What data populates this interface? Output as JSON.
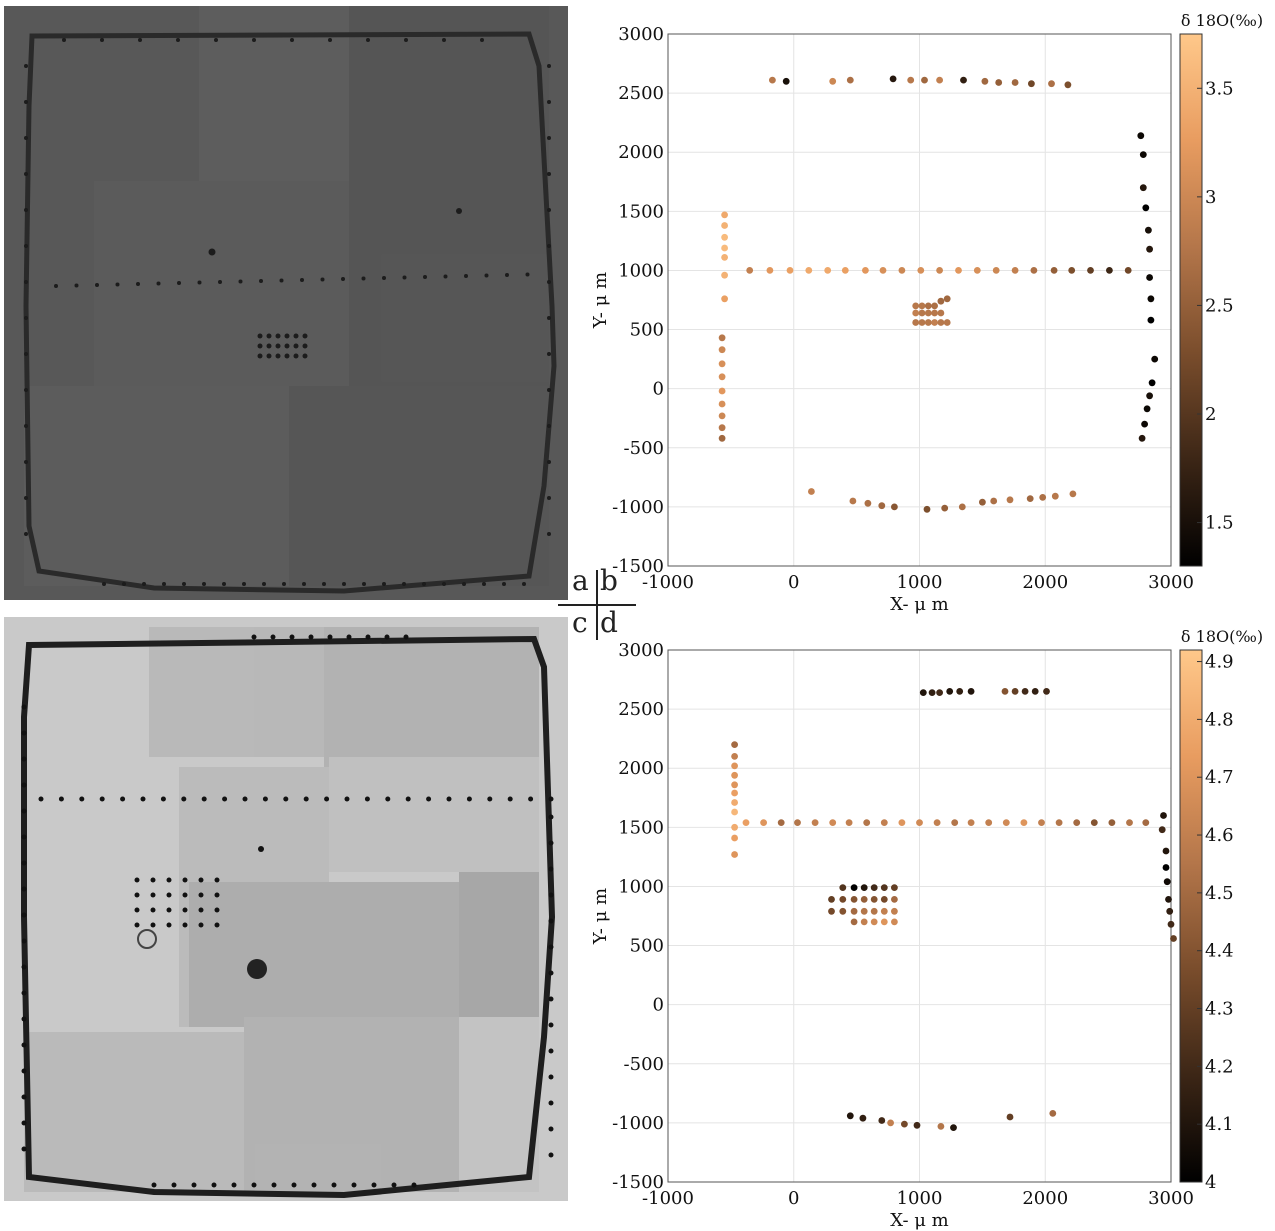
{
  "panel_labels": {
    "a": "a",
    "b": "b",
    "c": "c",
    "d": "d"
  },
  "photos": {
    "a": {
      "background": "#585858",
      "outline": "#2a2a2a",
      "pit": "#1c1c1c"
    },
    "c": {
      "background": "#c9c9c9",
      "outline": "#1e1e1e",
      "pit": "#111111"
    }
  },
  "colormap": [
    "#000000",
    "#3c2616",
    "#7a4d2c",
    "#b4764a",
    "#e89c60",
    "#ffc88a"
  ],
  "chart_data": [
    {
      "type": "scatter",
      "panel": "b",
      "xlabel": "X- μ m",
      "ylabel": "Y- μ m",
      "colorbar_label": "δ 18O(‰)",
      "xlim": [
        -1000,
        3000
      ],
      "ylim": [
        -1500,
        3000
      ],
      "xticks": [
        -1000,
        0,
        1000,
        2000,
        3000
      ],
      "yticks": [
        -1500,
        -1000,
        -500,
        0,
        500,
        1000,
        1500,
        2000,
        2500,
        3000
      ],
      "clim": [
        1.3,
        3.75
      ],
      "cticks": [
        1.5,
        2,
        2.5,
        3,
        3.5
      ],
      "grid": true,
      "points": [
        [
          -170,
          2610,
          2.8
        ],
        [
          -60,
          2600,
          1.5
        ],
        [
          310,
          2600,
          3.0
        ],
        [
          450,
          2610,
          2.7
        ],
        [
          790,
          2620,
          1.6
        ],
        [
          930,
          2610,
          2.8
        ],
        [
          1040,
          2610,
          2.6
        ],
        [
          1160,
          2610,
          2.9
        ],
        [
          1350,
          2610,
          1.7
        ],
        [
          1520,
          2600,
          2.6
        ],
        [
          1630,
          2590,
          2.5
        ],
        [
          1760,
          2590,
          2.6
        ],
        [
          1890,
          2580,
          2.2
        ],
        [
          2050,
          2580,
          2.7
        ],
        [
          2180,
          2570,
          2.3
        ],
        [
          -550,
          1470,
          3.4
        ],
        [
          -550,
          1380,
          3.5
        ],
        [
          -550,
          1280,
          3.6
        ],
        [
          -550,
          1190,
          3.6
        ],
        [
          -550,
          1110,
          3.5
        ],
        [
          -550,
          960,
          3.5
        ],
        [
          -550,
          760,
          3.3
        ],
        [
          -350,
          1000,
          2.9
        ],
        [
          -190,
          1000,
          3.2
        ],
        [
          -30,
          1000,
          3.3
        ],
        [
          120,
          1000,
          3.4
        ],
        [
          270,
          1000,
          3.4
        ],
        [
          410,
          1000,
          3.3
        ],
        [
          570,
          1000,
          3.2
        ],
        [
          710,
          1000,
          3.1
        ],
        [
          860,
          1000,
          3.0
        ],
        [
          1010,
          1000,
          3.1
        ],
        [
          1160,
          1000,
          3.0
        ],
        [
          1310,
          1000,
          3.2
        ],
        [
          1460,
          1000,
          3.1
        ],
        [
          1610,
          1000,
          3.0
        ],
        [
          1760,
          1000,
          2.9
        ],
        [
          1910,
          1000,
          2.7
        ],
        [
          2070,
          1000,
          2.5
        ],
        [
          2210,
          1000,
          2.3
        ],
        [
          2360,
          1000,
          2.1
        ],
        [
          2510,
          1000,
          1.8
        ],
        [
          2660,
          1000,
          2.2
        ],
        [
          970,
          700,
          2.8
        ],
        [
          1020,
          700,
          2.8
        ],
        [
          1070,
          700,
          2.7
        ],
        [
          1120,
          700,
          2.7
        ],
        [
          1170,
          740,
          2.6
        ],
        [
          1220,
          760,
          2.6
        ],
        [
          970,
          640,
          2.9
        ],
        [
          1020,
          640,
          2.8
        ],
        [
          1070,
          640,
          2.8
        ],
        [
          1120,
          640,
          2.8
        ],
        [
          1170,
          640,
          2.8
        ],
        [
          970,
          560,
          2.8
        ],
        [
          1020,
          560,
          2.8
        ],
        [
          1070,
          560,
          2.8
        ],
        [
          1120,
          560,
          2.9
        ],
        [
          1170,
          560,
          2.8
        ],
        [
          1220,
          560,
          2.8
        ],
        [
          -570,
          430,
          2.8
        ],
        [
          -570,
          330,
          3.0
        ],
        [
          -570,
          210,
          3.1
        ],
        [
          -570,
          100,
          3.1
        ],
        [
          -570,
          -20,
          3.2
        ],
        [
          -570,
          -130,
          3.1
        ],
        [
          -570,
          -230,
          3.0
        ],
        [
          -570,
          -330,
          2.8
        ],
        [
          -570,
          -420,
          2.6
        ],
        [
          2760,
          2140,
          1.4
        ],
        [
          2780,
          1980,
          1.4
        ],
        [
          2780,
          1700,
          1.6
        ],
        [
          2800,
          1530,
          1.3
        ],
        [
          2820,
          1340,
          1.5
        ],
        [
          2830,
          1180,
          1.6
        ],
        [
          2830,
          940,
          1.4
        ],
        [
          2840,
          760,
          1.4
        ],
        [
          2840,
          580,
          1.3
        ],
        [
          2870,
          250,
          1.4
        ],
        [
          2850,
          50,
          1.3
        ],
        [
          2830,
          -60,
          1.5
        ],
        [
          2810,
          -170,
          1.4
        ],
        [
          2790,
          -300,
          1.4
        ],
        [
          2770,
          -420,
          1.6
        ],
        [
          140,
          -870,
          2.9
        ],
        [
          470,
          -950,
          2.8
        ],
        [
          590,
          -970,
          2.7
        ],
        [
          700,
          -990,
          2.6
        ],
        [
          800,
          -1000,
          2.4
        ],
        [
          1060,
          -1020,
          2.3
        ],
        [
          1200,
          -1010,
          2.5
        ],
        [
          1340,
          -1000,
          2.7
        ],
        [
          1500,
          -960,
          2.5
        ],
        [
          1590,
          -950,
          2.7
        ],
        [
          1720,
          -940,
          2.8
        ],
        [
          1880,
          -930,
          2.6
        ],
        [
          1980,
          -920,
          2.7
        ],
        [
          2080,
          -910,
          2.8
        ],
        [
          2220,
          -890,
          2.8
        ]
      ]
    },
    {
      "type": "scatter",
      "panel": "d",
      "xlabel": "X- μ m",
      "ylabel": "Y- μ m",
      "colorbar_label": "δ 18O(‰)",
      "xlim": [
        -1000,
        3000
      ],
      "ylim": [
        -1500,
        3000
      ],
      "xticks": [
        -1000,
        0,
        1000,
        2000,
        3000
      ],
      "yticks": [
        -1500,
        -1000,
        -500,
        0,
        500,
        1000,
        1500,
        2000,
        2500,
        3000
      ],
      "clim": [
        4.0,
        4.92
      ],
      "cticks": [
        4,
        4.1,
        4.2,
        4.3,
        4.4,
        4.5,
        4.6,
        4.7,
        4.8,
        4.9
      ],
      "grid": true,
      "points": [
        [
          1030,
          2640,
          4.1
        ],
        [
          1100,
          2640,
          4.15
        ],
        [
          1160,
          2640,
          4.2
        ],
        [
          1240,
          2650,
          4.1
        ],
        [
          1320,
          2650,
          4.15
        ],
        [
          1410,
          2650,
          4.1
        ],
        [
          1680,
          2650,
          4.4
        ],
        [
          1760,
          2650,
          4.3
        ],
        [
          1840,
          2650,
          4.2
        ],
        [
          1920,
          2650,
          4.15
        ],
        [
          2010,
          2650,
          4.2
        ],
        [
          -470,
          2200,
          4.5
        ],
        [
          -470,
          2100,
          4.6
        ],
        [
          -470,
          2020,
          4.7
        ],
        [
          -470,
          1940,
          4.7
        ],
        [
          -470,
          1860,
          4.7
        ],
        [
          -470,
          1790,
          4.75
        ],
        [
          -470,
          1710,
          4.8
        ],
        [
          -470,
          1630,
          4.85
        ],
        [
          -470,
          1500,
          4.8
        ],
        [
          -470,
          1410,
          4.75
        ],
        [
          -470,
          1270,
          4.7
        ],
        [
          -380,
          1540,
          4.75
        ],
        [
          -240,
          1540,
          4.7
        ],
        [
          -100,
          1540,
          4.5
        ],
        [
          30,
          1540,
          4.55
        ],
        [
          170,
          1540,
          4.6
        ],
        [
          310,
          1540,
          4.65
        ],
        [
          440,
          1540,
          4.6
        ],
        [
          580,
          1540,
          4.55
        ],
        [
          720,
          1540,
          4.6
        ],
        [
          860,
          1540,
          4.7
        ],
        [
          1000,
          1540,
          4.65
        ],
        [
          1140,
          1540,
          4.6
        ],
        [
          1280,
          1540,
          4.55
        ],
        [
          1410,
          1540,
          4.6
        ],
        [
          1550,
          1540,
          4.6
        ],
        [
          1690,
          1540,
          4.65
        ],
        [
          1830,
          1540,
          4.7
        ],
        [
          1970,
          1540,
          4.6
        ],
        [
          2110,
          1540,
          4.55
        ],
        [
          2250,
          1540,
          4.5
        ],
        [
          2390,
          1540,
          4.4
        ],
        [
          2530,
          1540,
          4.45
        ],
        [
          2670,
          1540,
          4.55
        ],
        [
          2800,
          1540,
          4.5
        ],
        [
          2940,
          1600,
          4.1
        ],
        [
          2930,
          1480,
          4.2
        ],
        [
          2960,
          1300,
          4.1
        ],
        [
          2960,
          1160,
          4.0
        ],
        [
          2970,
          1040,
          4.05
        ],
        [
          2980,
          890,
          4.1
        ],
        [
          2990,
          790,
          4.15
        ],
        [
          3000,
          680,
          4.2
        ],
        [
          3020,
          560,
          4.3
        ],
        [
          390,
          990,
          4.25
        ],
        [
          480,
          990,
          4.0
        ],
        [
          560,
          990,
          4.1
        ],
        [
          640,
          990,
          4.2
        ],
        [
          720,
          990,
          4.25
        ],
        [
          800,
          990,
          4.3
        ],
        [
          300,
          890,
          4.3
        ],
        [
          390,
          890,
          4.35
        ],
        [
          480,
          890,
          4.4
        ],
        [
          560,
          890,
          4.45
        ],
        [
          640,
          890,
          4.4
        ],
        [
          720,
          890,
          4.35
        ],
        [
          800,
          890,
          4.5
        ],
        [
          300,
          790,
          4.35
        ],
        [
          390,
          790,
          4.4
        ],
        [
          480,
          790,
          4.5
        ],
        [
          560,
          790,
          4.55
        ],
        [
          640,
          790,
          4.55
        ],
        [
          720,
          790,
          4.6
        ],
        [
          800,
          790,
          4.6
        ],
        [
          480,
          700,
          4.5
        ],
        [
          560,
          700,
          4.6
        ],
        [
          640,
          700,
          4.65
        ],
        [
          720,
          700,
          4.7
        ],
        [
          800,
          700,
          4.65
        ],
        [
          450,
          -940,
          4.1
        ],
        [
          550,
          -960,
          4.15
        ],
        [
          700,
          -980,
          4.2
        ],
        [
          770,
          -1000,
          4.6
        ],
        [
          880,
          -1010,
          4.35
        ],
        [
          980,
          -1020,
          4.2
        ],
        [
          1170,
          -1030,
          4.55
        ],
        [
          1270,
          -1040,
          4.1
        ],
        [
          1720,
          -950,
          4.3
        ],
        [
          2060,
          -920,
          4.5
        ]
      ]
    }
  ]
}
